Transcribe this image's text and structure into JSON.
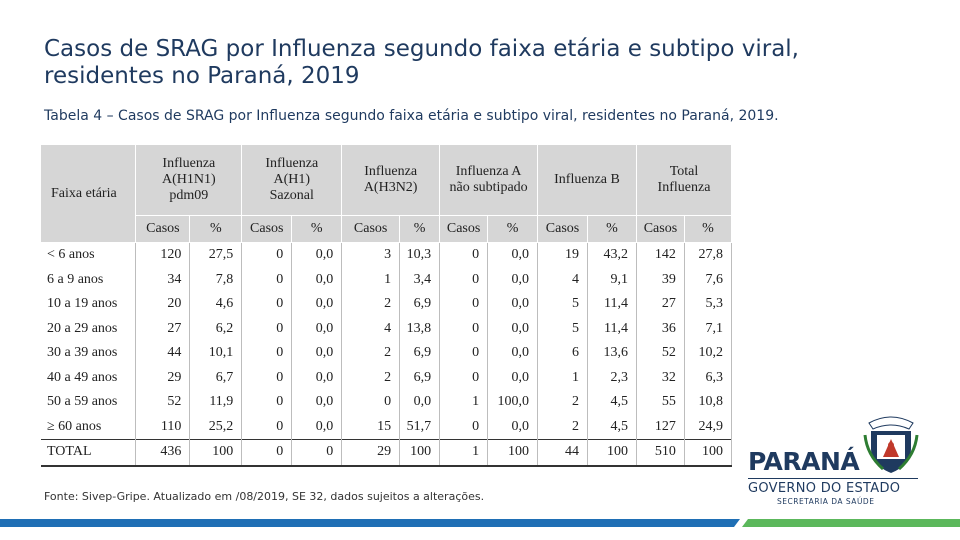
{
  "slide": {
    "title": "Casos de SRAG por Influenza segundo faixa etária e subtipo viral, residentes no Paraná, 2019",
    "subtitle": "Tabela 4 – Casos de SRAG por Influenza segundo faixa etária e subtipo viral, residentes no Paraná, 2019.",
    "footnote": "Fonte: Sivep-Gripe. Atualizado em /08/2019, SE 32, dados sujeitos a alterações."
  },
  "table": {
    "row_header": "Faixa etária",
    "groups": [
      {
        "line1": "Influenza",
        "line2": "A(H1N1)",
        "line3": "pdm09"
      },
      {
        "line1": "Influenza",
        "line2": "A(H1)",
        "line3": "Sazonal"
      },
      {
        "line1": "Influenza",
        "line2": "A(H3N2)",
        "line3": ""
      },
      {
        "line1": "Influenza A",
        "line2": "não subtipado",
        "line3": ""
      },
      {
        "line1": "Influenza B",
        "line2": "",
        "line3": ""
      },
      {
        "line1": "Total",
        "line2": "Influenza",
        "line3": ""
      }
    ],
    "sub_casos": "Casos",
    "sub_pct": "%",
    "rows": [
      {
        "label": "< 6 anos",
        "v": [
          "120",
          "27,5",
          "0",
          "0,0",
          "3",
          "10,3",
          "0",
          "0,0",
          "19",
          "43,2",
          "142",
          "27,8"
        ]
      },
      {
        "label": "6 a 9 anos",
        "v": [
          "34",
          "7,8",
          "0",
          "0,0",
          "1",
          "3,4",
          "0",
          "0,0",
          "4",
          "9,1",
          "39",
          "7,6"
        ]
      },
      {
        "label": "10 a 19 anos",
        "v": [
          "20",
          "4,6",
          "0",
          "0,0",
          "2",
          "6,9",
          "0",
          "0,0",
          "5",
          "11,4",
          "27",
          "5,3"
        ]
      },
      {
        "label": "20 a 29 anos",
        "v": [
          "27",
          "6,2",
          "0",
          "0,0",
          "4",
          "13,8",
          "0",
          "0,0",
          "5",
          "11,4",
          "36",
          "7,1"
        ]
      },
      {
        "label": "30 a 39 anos",
        "v": [
          "44",
          "10,1",
          "0",
          "0,0",
          "2",
          "6,9",
          "0",
          "0,0",
          "6",
          "13,6",
          "52",
          "10,2"
        ]
      },
      {
        "label": "40 a 49 anos",
        "v": [
          "29",
          "6,7",
          "0",
          "0,0",
          "2",
          "6,9",
          "0",
          "0,0",
          "1",
          "2,3",
          "32",
          "6,3"
        ]
      },
      {
        "label": "50 a 59 anos",
        "v": [
          "52",
          "11,9",
          "0",
          "0,0",
          "0",
          "0,0",
          "1",
          "100,0",
          "2",
          "4,5",
          "55",
          "10,8"
        ]
      },
      {
        "label": "≥ 60 anos",
        "v": [
          "110",
          "25,2",
          "0",
          "0,0",
          "15",
          "51,7",
          "0",
          "0,0",
          "2",
          "4,5",
          "127",
          "24,9"
        ]
      }
    ],
    "total": {
      "label": "TOTAL",
      "v": [
        "436",
        "100",
        "0",
        "0",
        "29",
        "100",
        "1",
        "100",
        "44",
        "100",
        "510",
        "100"
      ]
    }
  },
  "logo": {
    "name": "PARANÁ",
    "government": "GOVERNO DO ESTADO",
    "secretariat": "SECRETARIA DA SAÚDE"
  },
  "colors": {
    "title": "#1f3a5f",
    "header_bg": "#d6d6d6",
    "bar_blue": "#1f6fb5",
    "bar_green": "#5cb85c"
  }
}
